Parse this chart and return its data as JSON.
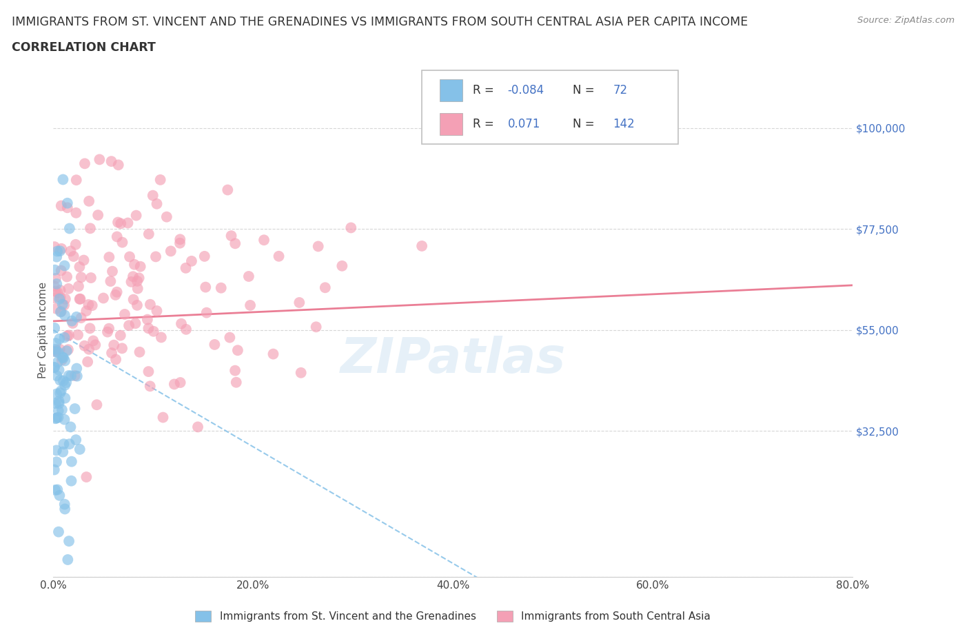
{
  "title_line1": "IMMIGRANTS FROM ST. VINCENT AND THE GRENADINES VS IMMIGRANTS FROM SOUTH CENTRAL ASIA PER CAPITA INCOME",
  "title_line2": "CORRELATION CHART",
  "source_text": "Source: ZipAtlas.com",
  "ylabel": "Per Capita Income",
  "xlim": [
    0.0,
    0.8
  ],
  "ylim": [
    0,
    110000
  ],
  "yticks": [
    0,
    32500,
    55000,
    77500,
    100000
  ],
  "ytick_labels": [
    "",
    "$32,500",
    "$55,000",
    "$77,500",
    "$100,000"
  ],
  "xticks": [
    0.0,
    0.2,
    0.4,
    0.6,
    0.8
  ],
  "xtick_labels": [
    "0.0%",
    "20.0%",
    "40.0%",
    "60.0%",
    "80.0%"
  ],
  "color_blue": "#85C1E8",
  "color_pink": "#F4A0B5",
  "color_blue_line": "#85C1E8",
  "color_pink_line": "#E8708A",
  "color_ytick": "#4472c4",
  "color_title": "#404040",
  "watermark": "ZIPatlas",
  "background_color": "#ffffff",
  "grid_color": "#cccccc",
  "blue_intercept": 55000,
  "blue_slope": -130000,
  "pink_intercept": 57000,
  "pink_slope": 10000
}
